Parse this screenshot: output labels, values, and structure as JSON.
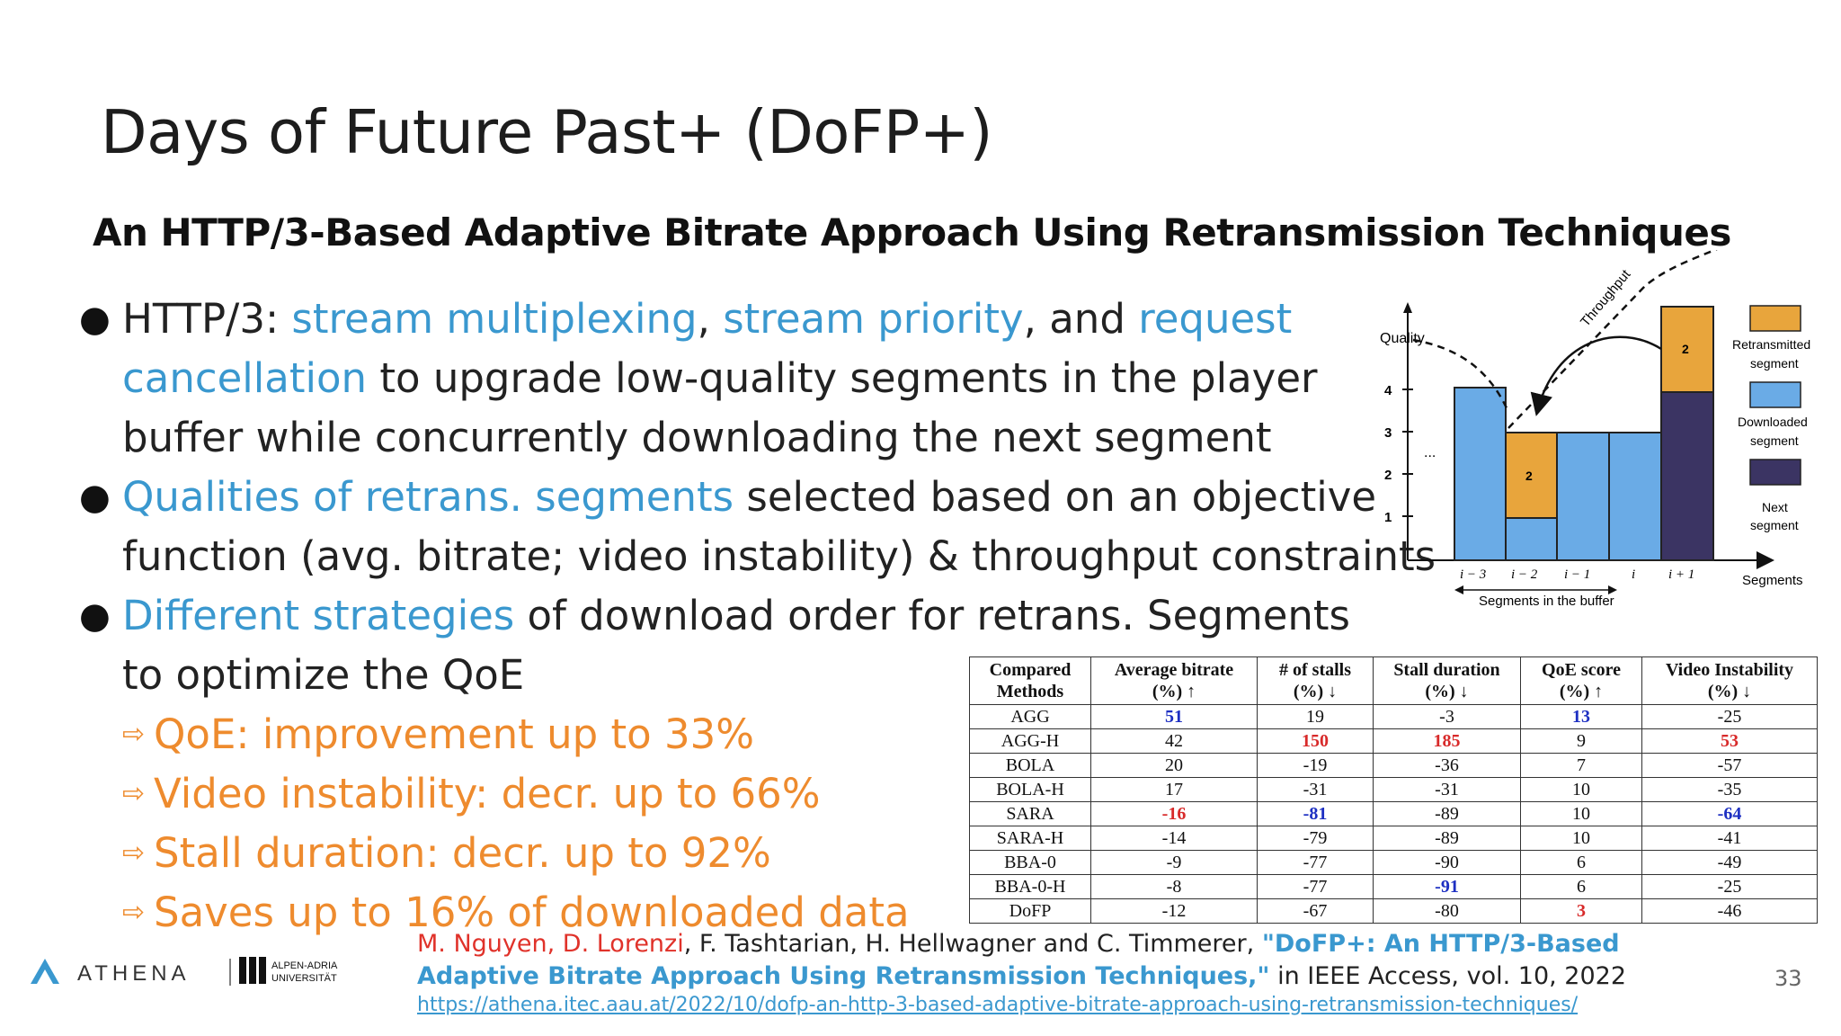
{
  "slide": {
    "title": "Days of Future Past+ (DoFP+)",
    "subtitle": "An HTTP/3-Based Adaptive Bitrate Approach Using Retransmission Techniques",
    "page_number": "33"
  },
  "bullets": {
    "b1": {
      "prefix": "HTTP/3: ",
      "hl1": "stream multiplexing",
      "sep1": ", ",
      "hl2": "stream priority",
      "sep2": ", and ",
      "hl3": "request cancellation",
      "rest": " to upgrade low-quality segments in the player buffer while concurrently downloading the next segment"
    },
    "b2": {
      "hl": "Qualities of retrans. segments",
      "rest": " selected based on an objective function (avg. bitrate; video instability) & throughput constraints"
    },
    "b3": {
      "hl": "Different strategies",
      "rest": " of download order for retrans. Segments to optimize the QoE"
    },
    "subs": [
      "QoE: improvement up to 33%",
      "Video instability: decr. up to 66%",
      "Stall duration: decr. up to 92%",
      "Saves up to 16% of downloaded data"
    ]
  },
  "diagram": {
    "y_axis_label": "Quality",
    "y_ticks": [
      "1",
      "2",
      "3",
      "4"
    ],
    "x_ticks": [
      "i − 3",
      "i − 2",
      "i − 1",
      "i",
      "i + 1"
    ],
    "ellipsis": "...",
    "throughput_label": "Throughput",
    "segments_label": "Segments",
    "buffer_label": "Segments in the buffer",
    "bar_retrans_label": "2",
    "next_retrans_label": "2",
    "legend": {
      "retransmitted_line1": "Retransmitted",
      "retransmitted_line2": "segment",
      "downloaded_line1": "Downloaded",
      "downloaded_line2": "segment",
      "next_line1": "Next",
      "next_line2": "segment"
    },
    "colors": {
      "retransmitted": "#e8a53c",
      "downloaded": "#6aabe6",
      "next": "#3b3463"
    }
  },
  "table": {
    "headers": [
      [
        "Compared",
        "Methods"
      ],
      [
        "Average bitrate",
        "(%) ↑"
      ],
      [
        "# of stalls",
        "(%) ↓"
      ],
      [
        "Stall duration",
        "(%) ↓"
      ],
      [
        "QoE score",
        "(%) ↑"
      ],
      [
        "Video Instability",
        "(%) ↓"
      ]
    ],
    "rows": [
      [
        "AGG",
        "51",
        "19",
        "-3",
        "13",
        "-25"
      ],
      [
        "AGG-H",
        "42",
        "150",
        "185",
        "9",
        "53"
      ],
      [
        "BOLA",
        "20",
        "-19",
        "-36",
        "7",
        "-57"
      ],
      [
        "BOLA-H",
        "17",
        "-31",
        "-31",
        "10",
        "-35"
      ],
      [
        "SARA",
        "-16",
        "-81",
        "-89",
        "10",
        "-64"
      ],
      [
        "SARA-H",
        "-14",
        "-79",
        "-89",
        "10",
        "-41"
      ],
      [
        "BBA-0",
        "-9",
        "-77",
        "-90",
        "6",
        "-49"
      ],
      [
        "BBA-0-H",
        "-8",
        "-77",
        "-91",
        "6",
        "-25"
      ],
      [
        "DoFP",
        "-12",
        "-67",
        "-80",
        "3",
        "-46"
      ]
    ],
    "highlights": {
      "0-1": "blue",
      "0-4": "blue",
      "1-2": "red",
      "1-3": "red",
      "1-5": "red",
      "4-1": "red",
      "4-2": "blue",
      "4-5": "blue",
      "7-3": "blue",
      "8-4": "red"
    }
  },
  "logos": {
    "athena": "ATHENA",
    "aau_line1": "ALPEN-ADRIA",
    "aau_line2": "UNIVERSITÄT"
  },
  "citation": {
    "authors_red": "M. Nguyen, D. Lorenzi",
    "authors_rest": ", F. Tashtarian, H. Hellwagner and C. Timmerer, ",
    "paper_title": "\"DoFP+: An HTTP/3-Based Adaptive Bitrate Approach Using Retransmission Techniques,\"",
    "venue": " in IEEE Access, vol. 10, 2022",
    "url": "https://athena.itec.aau.at/2022/10/dofp-an-http-3-based-adaptive-bitrate-approach-using-retransmission-techniques/"
  }
}
